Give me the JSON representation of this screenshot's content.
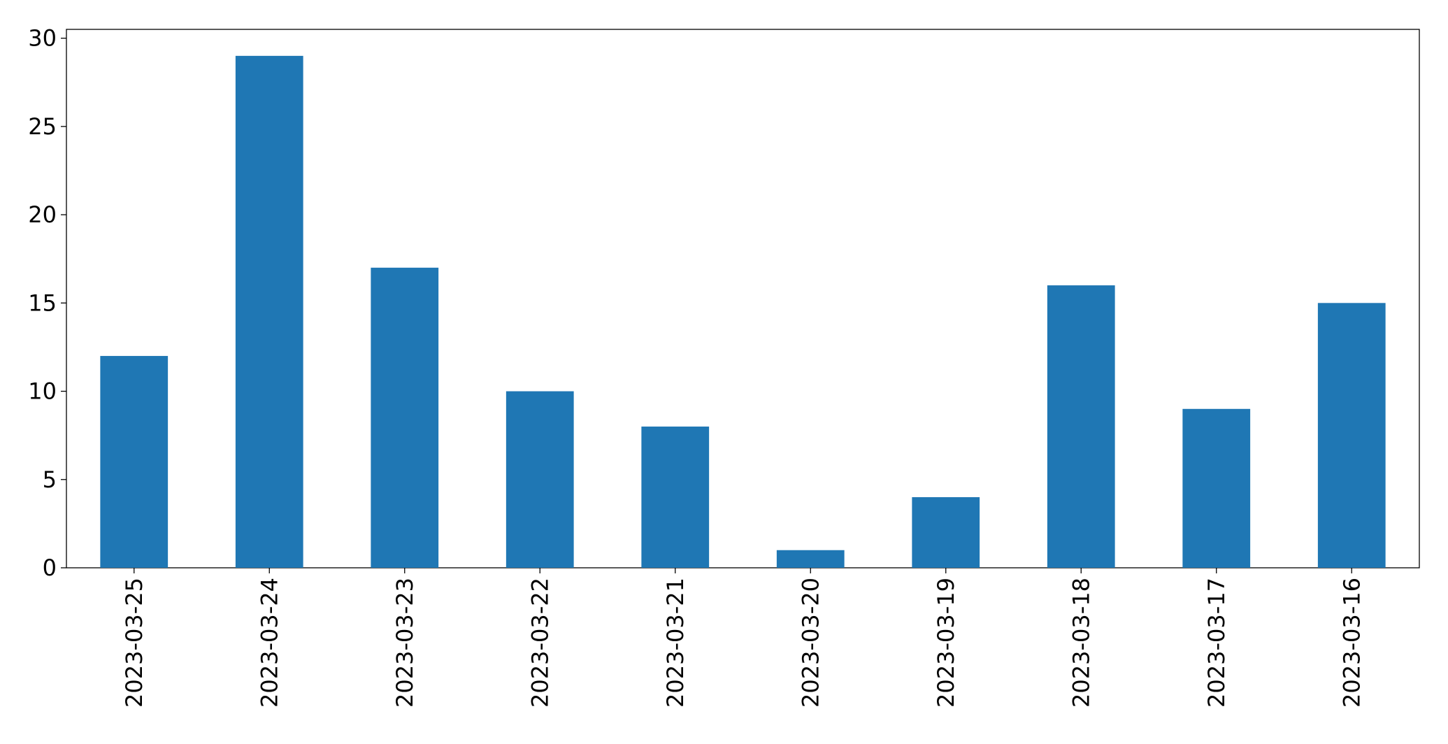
{
  "chart_data": {
    "type": "bar",
    "categories": [
      "2023-03-25",
      "2023-03-24",
      "2023-03-23",
      "2023-03-22",
      "2023-03-21",
      "2023-03-20",
      "2023-03-19",
      "2023-03-18",
      "2023-03-17",
      "2023-03-16"
    ],
    "values": [
      12,
      29,
      17,
      10,
      8,
      1,
      4,
      16,
      9,
      15
    ],
    "color": "#1f77b4",
    "ylim": [
      0,
      30.5
    ],
    "yticks": [
      0,
      5,
      10,
      15,
      20,
      25,
      30
    ],
    "grid": false
  }
}
